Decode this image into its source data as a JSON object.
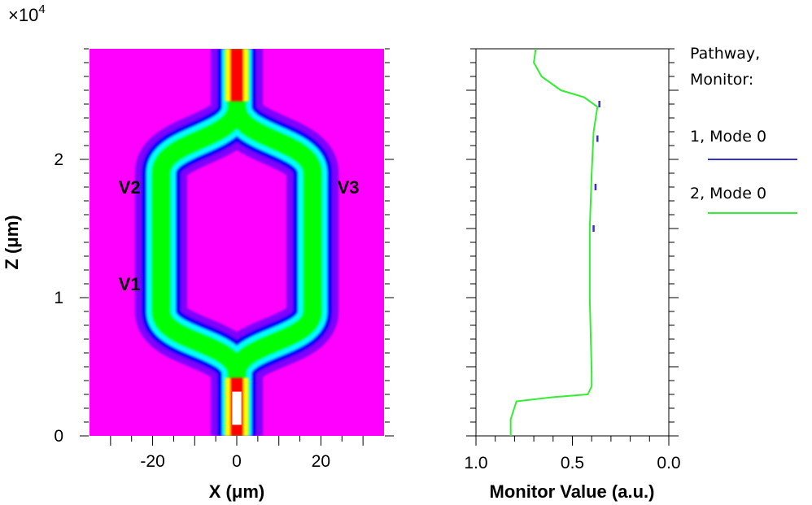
{
  "chart_data": [
    {
      "type": "heatmap",
      "multiplier_label": "×10",
      "multiplier_exp": "4",
      "xlabel": "X (μm)",
      "ylabel": "Z (μm)",
      "xlim": [
        -35,
        35
      ],
      "ylim": [
        0,
        2.8
      ],
      "x_ticks": [
        "-20",
        "0",
        "20"
      ],
      "x_tick_values": [
        -20,
        0,
        20
      ],
      "y_ticks": [
        "0",
        "1",
        "2"
      ],
      "y_tick_values": [
        0,
        1,
        2
      ],
      "colormap": [
        "#ff00ff",
        "#7f00ff",
        "#0000ff",
        "#00ffff",
        "#00ff00",
        "#ffff00",
        "#ff0000",
        "#ffffff"
      ],
      "waveguide_centerline": [
        {
          "z": 0.0,
          "x": 0
        },
        {
          "z": 0.45,
          "x": 0
        },
        {
          "z": 0.9,
          "x": 18
        },
        {
          "z": 1.9,
          "x": 18
        },
        {
          "z": 2.38,
          "x": 0
        },
        {
          "z": 2.8,
          "x": 0
        }
      ],
      "annotations": [
        {
          "text": "V1",
          "x": -25,
          "z": 1.1
        },
        {
          "text": "V2",
          "x": -25,
          "z": 1.8
        },
        {
          "text": "V3",
          "x": 27,
          "z": 1.8
        }
      ]
    },
    {
      "type": "line",
      "xlabel": "Monitor Value (a.u.)",
      "xlim": [
        1.0,
        0.0
      ],
      "ylim": [
        0,
        2.8
      ],
      "x_ticks": [
        "1.0",
        "0.5",
        "0.0"
      ],
      "x_tick_values": [
        1.0,
        0.5,
        0.0
      ],
      "legend_title": [
        "Pathway,",
        "Monitor:"
      ],
      "series": [
        {
          "name": "1, Mode 0",
          "color": "#3333cc",
          "points": [
            [
              0.36,
              2.4
            ],
            [
              0.37,
              2.15
            ],
            [
              0.38,
              1.8
            ],
            [
              0.39,
              1.5
            ]
          ]
        },
        {
          "name": "2, Mode 0",
          "color": "#33ee33",
          "points": [
            [
              0.82,
              0.0
            ],
            [
              0.82,
              0.12
            ],
            [
              0.79,
              0.25
            ],
            [
              0.6,
              0.28
            ],
            [
              0.42,
              0.3
            ],
            [
              0.4,
              0.36
            ],
            [
              0.4,
              0.45
            ],
            [
              0.41,
              1.0
            ],
            [
              0.41,
              1.5
            ],
            [
              0.4,
              1.9
            ],
            [
              0.39,
              2.2
            ],
            [
              0.37,
              2.38
            ],
            [
              0.44,
              2.45
            ],
            [
              0.56,
              2.5
            ],
            [
              0.66,
              2.6
            ],
            [
              0.7,
              2.7
            ],
            [
              0.69,
              2.8
            ]
          ]
        }
      ]
    }
  ]
}
